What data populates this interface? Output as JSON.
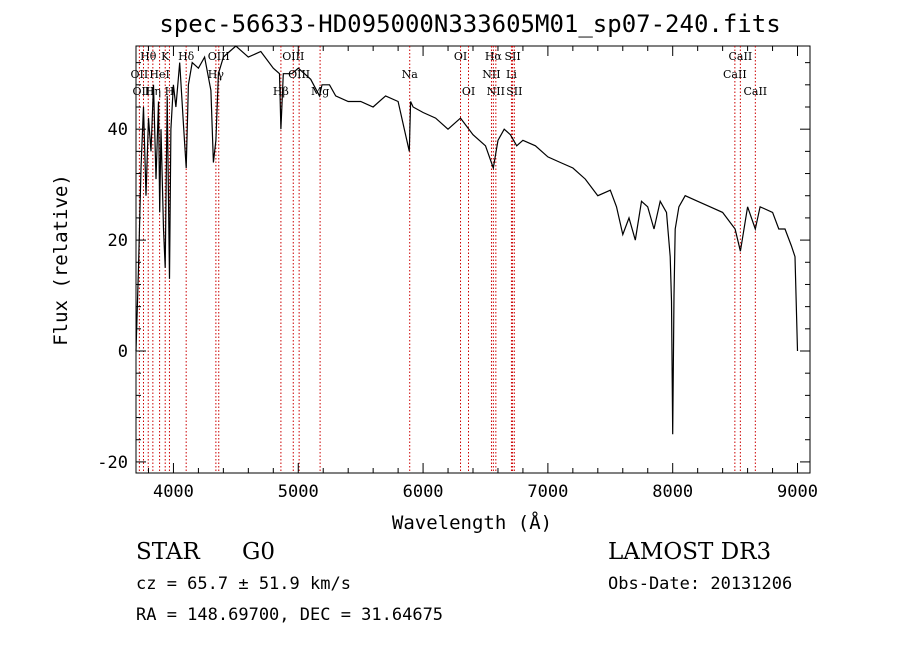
{
  "chart_data": {
    "type": "line",
    "title": "spec-56633-HD095000N333605M01_sp07-240.fits",
    "xlabel": "Wavelength (Å)",
    "ylabel": "Flux (relative)",
    "xlim": [
      3700,
      9100
    ],
    "ylim": [
      -22,
      55
    ],
    "xticks": [
      4000,
      5000,
      6000,
      7000,
      8000,
      9000
    ],
    "yticks": [
      -20,
      0,
      20,
      40
    ],
    "series": [
      {
        "name": "flux",
        "x": [
          3700,
          3720,
          3740,
          3760,
          3780,
          3800,
          3820,
          3840,
          3860,
          3880,
          3890,
          3900,
          3920,
          3934,
          3950,
          3968,
          3980,
          4000,
          4020,
          4050,
          4080,
          4102,
          4120,
          4150,
          4200,
          4250,
          4300,
          4320,
          4340,
          4360,
          4400,
          4450,
          4500,
          4600,
          4700,
          4800,
          4850,
          4861,
          4880,
          4950,
          5000,
          5100,
          5170,
          5190,
          5250,
          5300,
          5400,
          5500,
          5600,
          5700,
          5800,
          5890,
          5900,
          5920,
          6000,
          6100,
          6200,
          6300,
          6400,
          6500,
          6563,
          6600,
          6650,
          6700,
          6750,
          6800,
          6900,
          7000,
          7100,
          7200,
          7300,
          7400,
          7500,
          7550,
          7600,
          7650,
          7700,
          7750,
          7800,
          7850,
          7900,
          7950,
          7980,
          7990,
          8000,
          8010,
          8020,
          8050,
          8100,
          8200,
          8300,
          8400,
          8500,
          8542,
          8600,
          8662,
          8700,
          8800,
          8850,
          8900,
          8950,
          8980,
          9000
        ],
        "y": [
          0,
          15,
          33,
          44,
          28,
          42,
          36,
          48,
          31,
          45,
          25,
          40,
          22,
          15,
          46,
          13,
          40,
          48,
          44,
          52,
          41,
          33,
          48,
          52,
          51,
          53,
          47,
          34,
          38,
          50,
          53,
          54,
          55,
          53,
          54,
          51,
          50,
          40,
          50,
          50,
          51,
          49,
          46,
          48,
          48,
          46,
          45,
          45,
          44,
          46,
          45,
          36,
          45,
          44,
          43,
          42,
          40,
          42,
          39,
          37,
          33,
          38,
          40,
          39,
          37,
          38,
          37,
          35,
          34,
          33,
          31,
          28,
          29,
          26,
          21,
          24,
          20,
          27,
          26,
          22,
          27,
          25,
          17,
          9,
          -15,
          10,
          22,
          26,
          28,
          27,
          26,
          25,
          22,
          18,
          26,
          22,
          26,
          25,
          22,
          22,
          19,
          17,
          0
        ]
      }
    ],
    "line_markers": [
      {
        "label": "Hθ",
        "wave": 3798,
        "row": 1
      },
      {
        "label": "OII",
        "wave": 3727,
        "row": 2
      },
      {
        "label": "OIII",
        "wave": 3760,
        "row": 3
      },
      {
        "label": "K",
        "wave": 3934,
        "row": 1
      },
      {
        "label": "HeI",
        "wave": 3889,
        "row": 2
      },
      {
        "label": "Hη",
        "wave": 3835,
        "row": 3
      },
      {
        "label": "Hδ",
        "wave": 4102,
        "row": 1
      },
      {
        "label": "H",
        "wave": 3968,
        "row": 3
      },
      {
        "label": "OIII",
        "wave": 4363,
        "row": 1
      },
      {
        "label": "Hγ",
        "wave": 4340,
        "row": 2
      },
      {
        "label": "OIII",
        "wave": 4960,
        "row": 1
      },
      {
        "label": "OIII",
        "wave": 5007,
        "row": 2
      },
      {
        "label": "Hβ",
        "wave": 4861,
        "row": 3
      },
      {
        "label": "Mg",
        "wave": 5175,
        "row": 3
      },
      {
        "label": "Na",
        "wave": 5893,
        "row": 2
      },
      {
        "label": "OI",
        "wave": 6300,
        "row": 1
      },
      {
        "label": "OI",
        "wave": 6364,
        "row": 3
      },
      {
        "label": "Hα",
        "wave": 6563,
        "row": 1
      },
      {
        "label": "NII",
        "wave": 6548,
        "row": 2
      },
      {
        "label": "NII",
        "wave": 6583,
        "row": 3
      },
      {
        "label": "SII",
        "wave": 6717,
        "row": 1
      },
      {
        "label": "Li",
        "wave": 6708,
        "row": 2
      },
      {
        "label": "SII",
        "wave": 6731,
        "row": 3
      },
      {
        "label": "CaII",
        "wave": 8542,
        "row": 1
      },
      {
        "label": "CaII",
        "wave": 8498,
        "row": 2
      },
      {
        "label": "CaII",
        "wave": 8662,
        "row": 3
      }
    ],
    "marker_color": "#cc0000"
  },
  "info": {
    "class_label": "STAR",
    "subclass_label": "G0",
    "survey": "LAMOST DR3",
    "redshift": "cz = 65.7 ± 51.9 km/s",
    "obs_date": "Obs-Date: 20131206",
    "coords": "RA = 148.69700, DEC =  31.64675"
  }
}
